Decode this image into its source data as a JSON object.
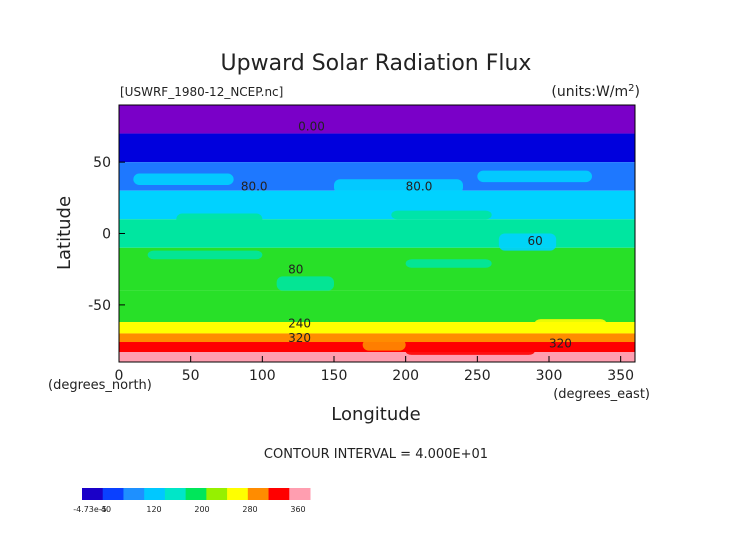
{
  "chart_data": {
    "type": "heatmap",
    "title": "Upward Solar Radiation Flux",
    "file_label": "[USWRF_1980-12_NCEP.nc]",
    "units_label": "(units:W/m^2)",
    "xlabel": "Longitude",
    "ylabel": "Latitude",
    "x_unit_note": "(degrees_east)",
    "y_unit_note": "(degrees_north)",
    "xlim": [
      0,
      360
    ],
    "ylim": [
      -90,
      90
    ],
    "x_ticks": [
      "0",
      "50",
      "100",
      "150",
      "200",
      "250",
      "300",
      "350"
    ],
    "y_ticks": [
      "50",
      "0",
      "-50"
    ],
    "contour_interval_text": "CONTOUR INTERVAL = 4.000E+01",
    "contour_labels": [
      {
        "text": "0.00",
        "lon": 125,
        "lat": 72
      },
      {
        "text": "80.0",
        "lon": 85,
        "lat": 30
      },
      {
        "text": "80.0",
        "lon": 200,
        "lat": 30
      },
      {
        "text": "60",
        "lon": 285,
        "lat": -8
      },
      {
        "text": "80",
        "lon": 118,
        "lat": -28
      },
      {
        "text": "240",
        "lon": 118,
        "lat": -66
      },
      {
        "text": "320",
        "lon": 118,
        "lat": -76
      },
      {
        "text": "320",
        "lon": 300,
        "lat": -80
      }
    ],
    "latitude_bands": [
      {
        "lat_top": 90,
        "lat_bottom": 70,
        "value": 0
      },
      {
        "lat_top": 70,
        "lat_bottom": 50,
        "value": 40
      },
      {
        "lat_top": 50,
        "lat_bottom": 30,
        "value": 80
      },
      {
        "lat_top": 30,
        "lat_bottom": 10,
        "value": 120
      },
      {
        "lat_top": 10,
        "lat_bottom": -10,
        "value": 160
      },
      {
        "lat_top": -10,
        "lat_bottom": -40,
        "value": 200
      },
      {
        "lat_top": -40,
        "lat_bottom": -62,
        "value": 200
      },
      {
        "lat_top": -62,
        "lat_bottom": -70,
        "value": 240
      },
      {
        "lat_top": -70,
        "lat_bottom": -76,
        "value": 280
      },
      {
        "lat_top": -76,
        "lat_bottom": -83,
        "value": 320
      },
      {
        "lat_top": -83,
        "lat_bottom": -90,
        "value": 360
      }
    ],
    "colorbar": {
      "min_label": "-4.73e-5",
      "tick_labels": [
        "40",
        "120",
        "200",
        "280",
        "360"
      ],
      "colors": [
        "#1a00c8",
        "#0a40ff",
        "#1e90ff",
        "#00c8ff",
        "#00e6c8",
        "#00e65a",
        "#96f000",
        "#ffff00",
        "#ff8c00",
        "#ff0000",
        "#ff9eb0"
      ]
    },
    "band_colors": {
      "0": "#7a00c8",
      "40": "#0000dd",
      "80": "#1e78ff",
      "120": "#00d2ff",
      "160": "#00e6a0",
      "200": "#28e028",
      "240": "#ffff00",
      "280": "#ff8c00",
      "320": "#ff0000",
      "360": "#ff9eb0"
    }
  }
}
